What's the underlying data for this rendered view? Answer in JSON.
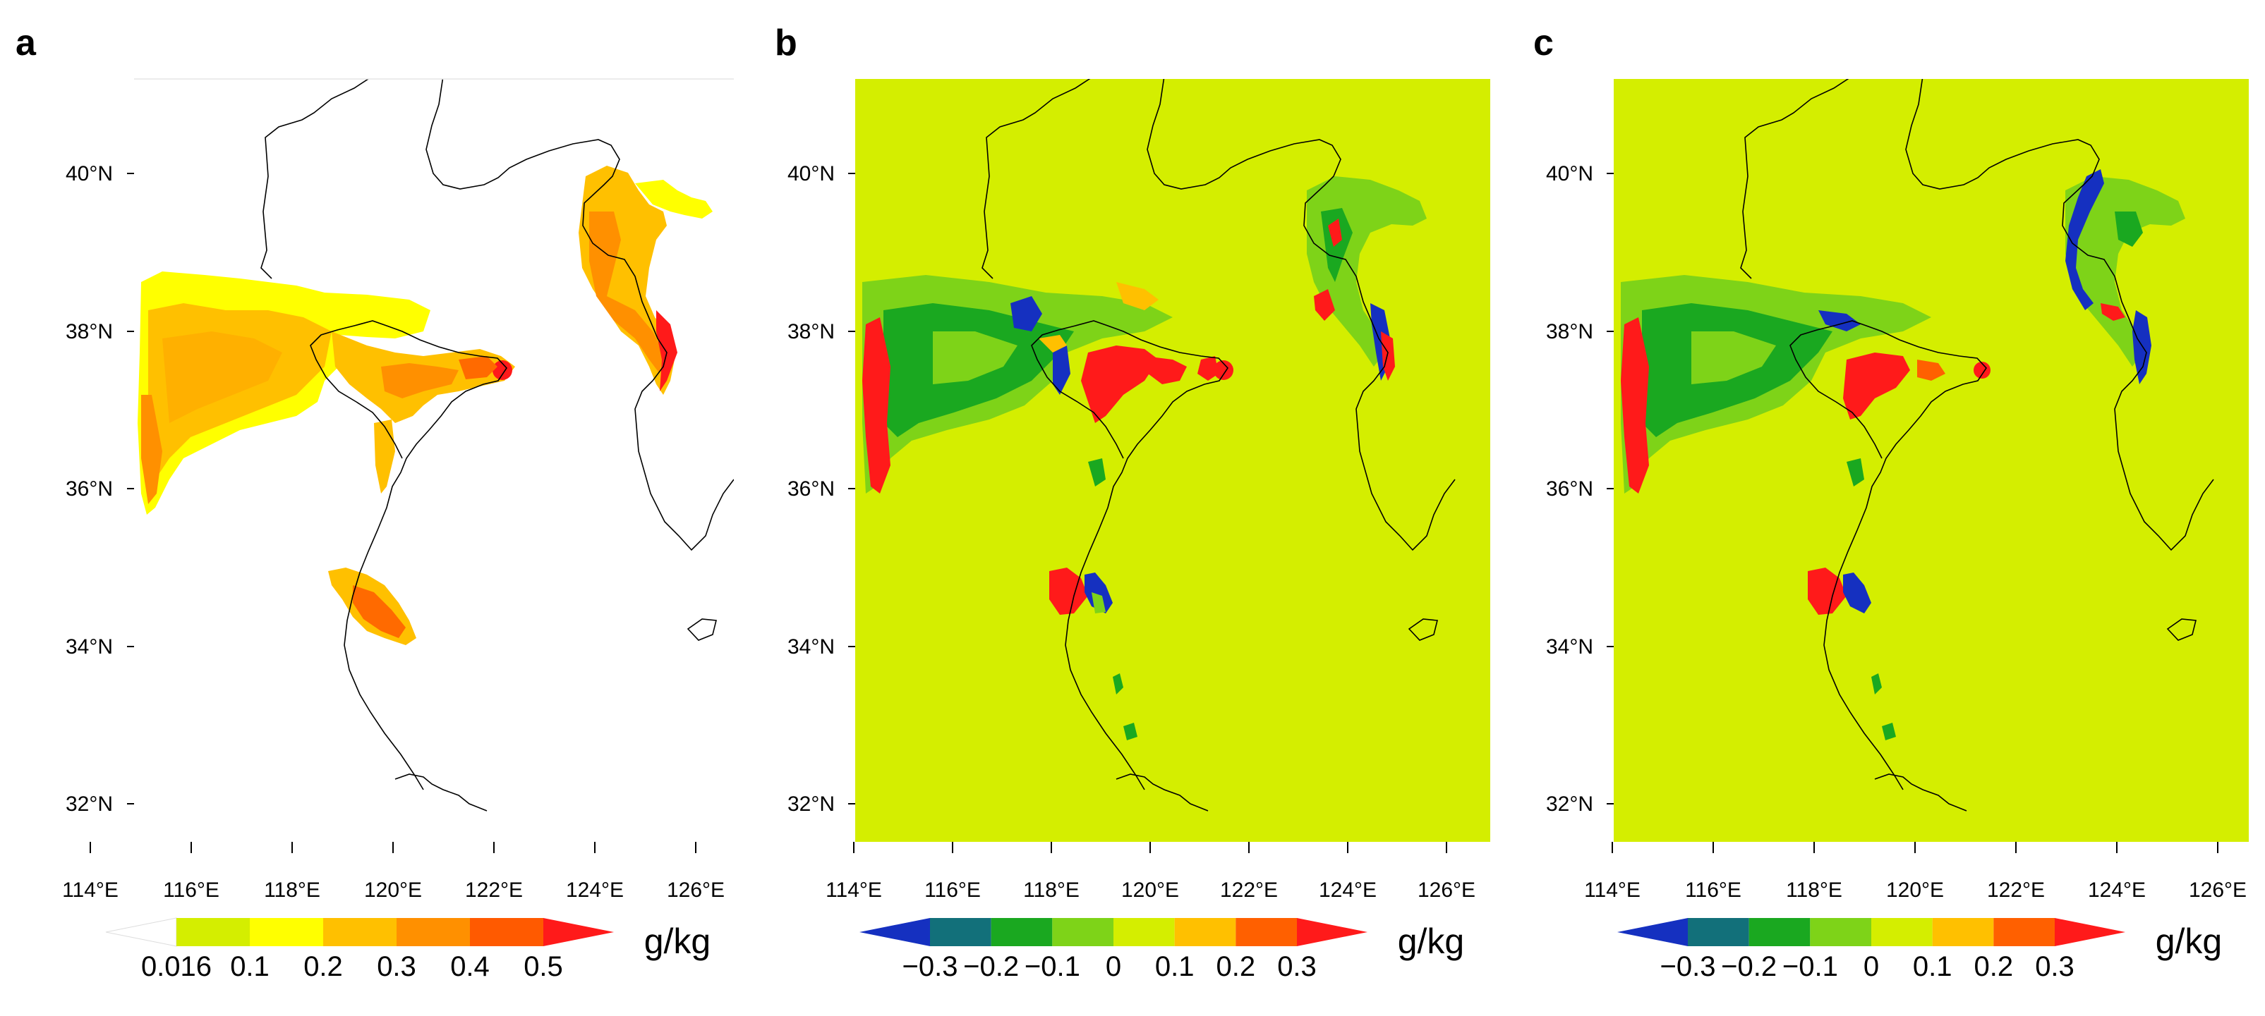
{
  "panels": [
    {
      "label": "a",
      "lat_ticks": [
        "40°N",
        "38°N",
        "36°N",
        "34°N",
        "32°N"
      ],
      "lon_ticks": [
        "114°E",
        "116°E",
        "118°E",
        "120°E",
        "122°E",
        "124°E",
        "126°E"
      ],
      "colorbar": {
        "unit": "g/kg",
        "labels": [
          "0.016",
          "0.1",
          "0.2",
          "0.3",
          "0.4",
          "0.5"
        ],
        "colors": [
          "#ffffff",
          "#d4ee00",
          "#ffff00",
          "#ffc000",
          "#ff9000",
          "#ff5a00",
          "#ff1a1a"
        ]
      }
    },
    {
      "label": "b",
      "lat_ticks": [
        "40°N",
        "38°N",
        "36°N",
        "34°N",
        "32°N"
      ],
      "lon_ticks": [
        "114°E",
        "116°E",
        "118°E",
        "120°E",
        "122°E",
        "124°E",
        "126°E"
      ],
      "colorbar": {
        "unit": "g/kg",
        "labels": [
          "−0.3",
          "−0.2",
          "−0.1",
          "0",
          "0.1",
          "0.2",
          "0.3"
        ],
        "colors": [
          "#1530c0",
          "#12707a",
          "#1aa820",
          "#7ed318",
          "#d4ee00",
          "#ffc000",
          "#ff6000",
          "#ff1a1a"
        ]
      }
    },
    {
      "label": "c",
      "lat_ticks": [
        "40°N",
        "38°N",
        "36°N",
        "34°N",
        "32°N"
      ],
      "lon_ticks": [
        "114°E",
        "116°E",
        "118°E",
        "120°E",
        "122°E",
        "124°E",
        "126°E"
      ],
      "colorbar": {
        "unit": "g/kg",
        "labels": [
          "−0.3",
          "−0.2",
          "−0.1",
          "0",
          "0.1",
          "0.2",
          "0.3"
        ],
        "colors": [
          "#1530c0",
          "#12707a",
          "#1aa820",
          "#7ed318",
          "#d4ee00",
          "#ffc000",
          "#ff6000",
          "#ff1a1a"
        ]
      }
    }
  ]
}
